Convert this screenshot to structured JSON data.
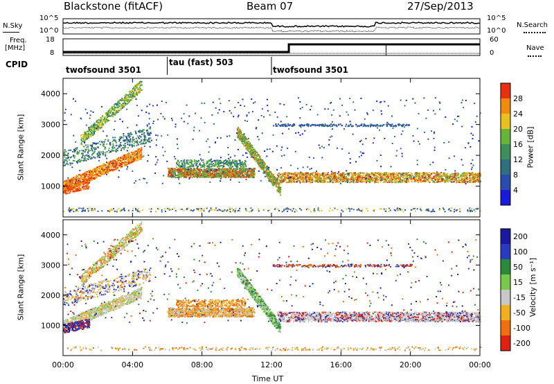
{
  "header": {
    "title_left": "Blackstone (fitACF)",
    "title_center": "Beam 07",
    "title_right": "27/Sep/2013"
  },
  "noise_panel": {
    "left_label": "N.Sky",
    "right_label": "N.Search",
    "tick_top": "10^5",
    "tick_bottom": "10^0"
  },
  "freq_panel": {
    "left_label_1": "Freq.",
    "left_label_2": "[MHz]",
    "left_ticks": [
      "18",
      "8"
    ],
    "right_ticks": [
      "60",
      "0"
    ],
    "right_label": "Nave"
  },
  "cpid": {
    "label": "CPID",
    "segments": [
      {
        "name": "twofsound 3501",
        "start_hour": 0,
        "end_hour": 6
      },
      {
        "name": "tau (fast) 503",
        "start_hour": 6,
        "end_hour": 12
      },
      {
        "name": "twofsound 3501",
        "start_hour": 12,
        "end_hour": 24
      }
    ]
  },
  "chart_data": [
    {
      "type": "heatmap",
      "quantity": "power",
      "ylabel": "Slant Range [km]",
      "yticks": [
        1000,
        2000,
        3000,
        4000
      ],
      "ylim": [
        0,
        4500
      ],
      "xlim": [
        0,
        24
      ],
      "colorbar": {
        "label": "Power [dB]",
        "ticks": [
          "4",
          "8",
          "12",
          "16",
          "20",
          "24",
          "28"
        ],
        "colors": [
          "#1a1adc",
          "#2a4cb0",
          "#2f6f80",
          "#3f8f58",
          "#66b43a",
          "#e8c020",
          "#f08a10",
          "#e83010"
        ]
      }
    },
    {
      "type": "heatmap",
      "quantity": "velocity",
      "ylabel": "Slant Range [km]",
      "yticks": [
        1000,
        2000,
        3000,
        4000
      ],
      "ylim": [
        0,
        4500
      ],
      "xlim": [
        0,
        24
      ],
      "xlabel": "Time UT",
      "xticks": [
        "00:00",
        "04:00",
        "08:00",
        "12:00",
        "16:00",
        "20:00",
        "00:00"
      ],
      "colorbar": {
        "label": "Velocity [m s⁻¹]",
        "ticks": [
          "200",
          "100",
          "50",
          "15",
          "-15",
          "-50",
          "-100",
          "-200"
        ],
        "colors": [
          "#1a1aa0",
          "#2a3ac0",
          "#2a8a3a",
          "#7ac84a",
          "#c8c8c8",
          "#f0b020",
          "#f07010",
          "#e02010"
        ]
      }
    }
  ]
}
